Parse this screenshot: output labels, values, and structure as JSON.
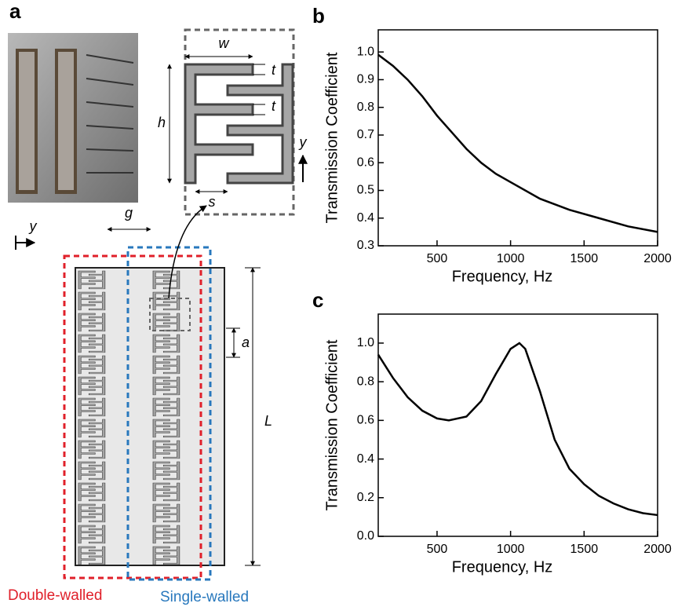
{
  "panels": [
    "a",
    "b",
    "c"
  ],
  "unit_cell": {
    "w": "w",
    "t_top": "t",
    "t_bottom": "t",
    "h": "h",
    "s": "s",
    "y": "y"
  },
  "structure": {
    "y": "y",
    "g": "g",
    "a": "a",
    "L": "L",
    "double_walled": "Double-walled",
    "single_walled": "Single-walled"
  },
  "chart_data": [
    {
      "type": "line",
      "x_label": "Frequency, Hz",
      "y_label": "Transmission Coefficient",
      "x": [
        100,
        200,
        300,
        400,
        500,
        600,
        700,
        800,
        900,
        1000,
        1200,
        1400,
        1600,
        1800,
        2000
      ],
      "values": [
        0.99,
        0.95,
        0.9,
        0.84,
        0.77,
        0.71,
        0.65,
        0.6,
        0.56,
        0.53,
        0.47,
        0.43,
        0.4,
        0.37,
        0.35
      ],
      "color": "#000000",
      "xlim": [
        100,
        2000
      ],
      "ylim": [
        0.3,
        1.08
      ],
      "xticks": [
        500,
        1000,
        1500,
        2000
      ],
      "yticks": [
        0.3,
        0.4,
        0.5,
        0.6,
        0.7,
        0.8,
        0.9,
        {
          "value": 1,
          "label": "1.0"
        }
      ]
    },
    {
      "type": "line",
      "x_label": "Frequency, Hz",
      "y_label": "Transmission Coefficient",
      "x": [
        100,
        200,
        300,
        400,
        500,
        580,
        700,
        800,
        900,
        1000,
        1060,
        1100,
        1200,
        1300,
        1400,
        1500,
        1600,
        1700,
        1800,
        1900,
        2000
      ],
      "values": [
        0.94,
        0.82,
        0.72,
        0.65,
        0.61,
        0.6,
        0.62,
        0.7,
        0.84,
        0.97,
        1.0,
        0.97,
        0.75,
        0.5,
        0.35,
        0.27,
        0.21,
        0.17,
        0.14,
        0.12,
        0.11
      ],
      "color": "#000000",
      "xlim": [
        100,
        2000
      ],
      "ylim": [
        0,
        1.15
      ],
      "xticks": [
        500,
        1000,
        1500,
        2000
      ],
      "yticks": [
        {
          "value": 0,
          "label": "0.0"
        },
        0.2,
        0.4,
        0.6,
        0.8,
        {
          "value": 1,
          "label": "1.0"
        }
      ]
    }
  ]
}
